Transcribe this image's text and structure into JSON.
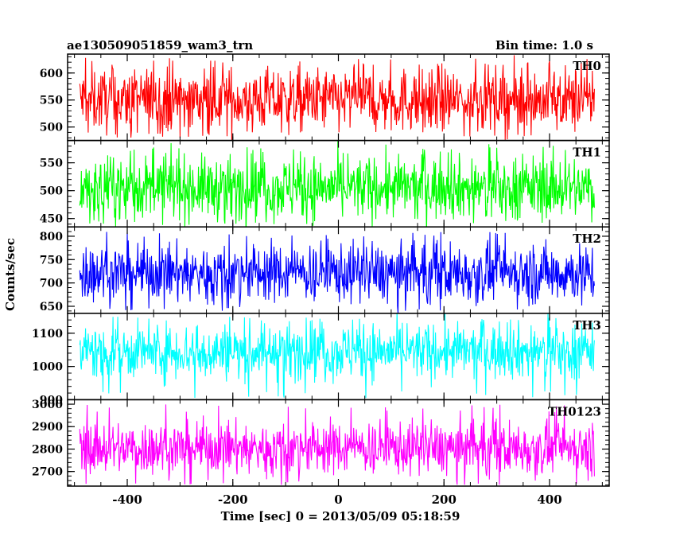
{
  "chart_data": {
    "type": "line",
    "title_left": "ae130509051859_wam3_trn",
    "title_right": "Bin time: 1.0 s",
    "ylabel": "Counts/sec",
    "xlabel": "Time [sec] 0 = 2013/05/09 05:18:59",
    "xlim": [
      -513,
      513
    ],
    "x_ticks": [
      -400,
      -200,
      0,
      200,
      400
    ],
    "x_range": [
      -490,
      485
    ],
    "grid": false,
    "panels": [
      {
        "name": "TH0",
        "color": "#ff0000",
        "mean": 550,
        "spread": 30,
        "peak_high": 630,
        "peak_low": 480,
        "ylim": [
          475,
          635
        ],
        "yticks": [
          500,
          550,
          600
        ]
      },
      {
        "name": "TH1",
        "color": "#00ff00",
        "mean": 505,
        "spread": 28,
        "peak_high": 580,
        "peak_low": 440,
        "ylim": [
          435,
          590
        ],
        "yticks": [
          450,
          500,
          550
        ]
      },
      {
        "name": "TH2",
        "color": "#0000ff",
        "mean": 722,
        "spread": 32,
        "peak_high": 810,
        "peak_low": 640,
        "ylim": [
          635,
          820
        ],
        "yticks": [
          650,
          700,
          750,
          800
        ]
      },
      {
        "name": "TH3",
        "color": "#00ffff",
        "mean": 1045,
        "spread": 42,
        "peak_high": 1150,
        "peak_low": 905,
        "ylim": [
          900,
          1160
        ],
        "yticks": [
          900,
          1000,
          1100
        ]
      },
      {
        "name": "TH0123",
        "color": "#ff00ff",
        "mean": 2805,
        "spread": 60,
        "peak_high": 3000,
        "peak_low": 2640,
        "ylim": [
          2635,
          3020
        ],
        "yticks": [
          2700,
          2800,
          2900,
          3000
        ]
      }
    ]
  }
}
